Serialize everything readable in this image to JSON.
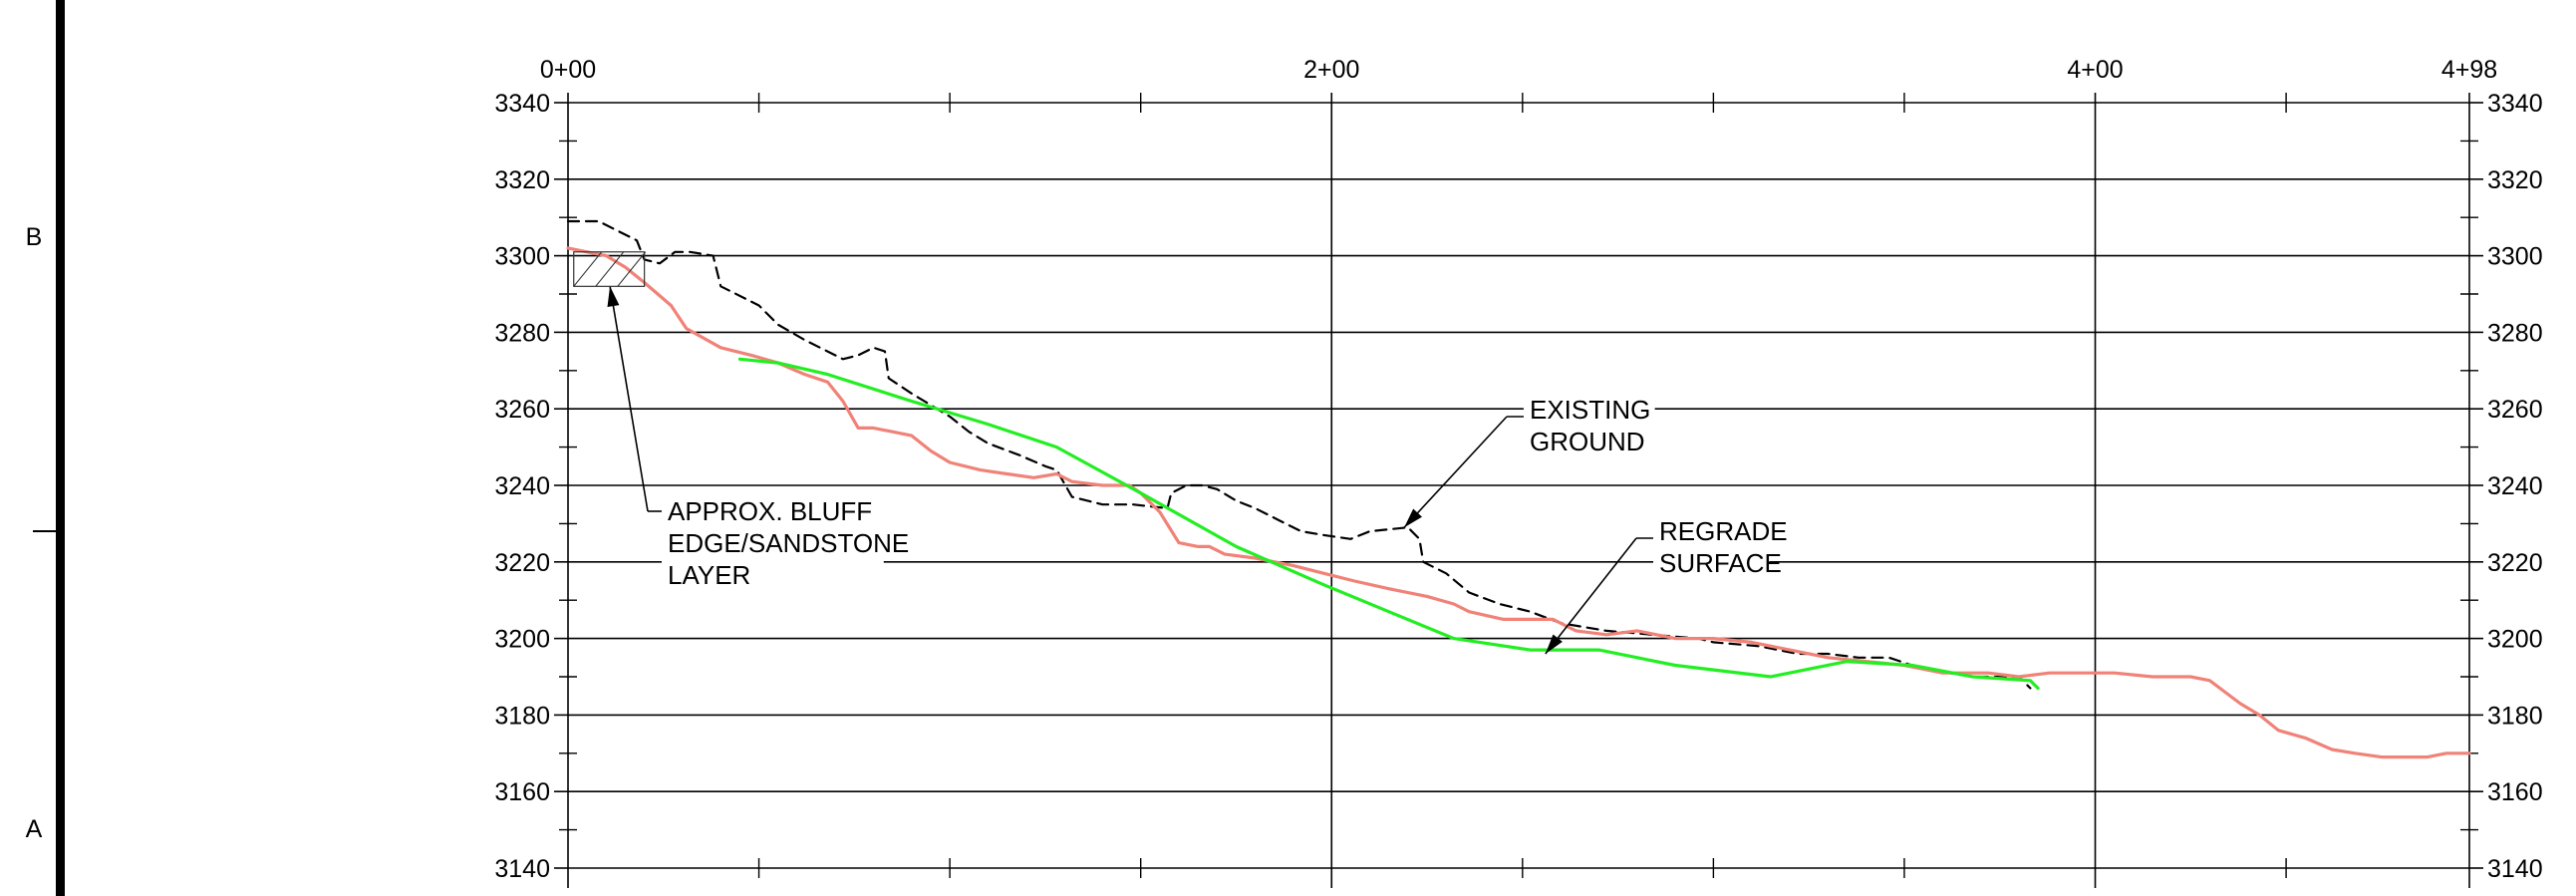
{
  "sheet": {
    "zone_labels": [
      "B",
      "A"
    ]
  },
  "chart_data": {
    "type": "line",
    "title": "",
    "xlabel": "",
    "ylabel": "",
    "xlim": [
      0,
      498
    ],
    "ylim": [
      3140,
      3340
    ],
    "x_ticks": [
      {
        "x": 0,
        "label": "0+00"
      },
      {
        "x": 200,
        "label": "2+00"
      },
      {
        "x": 400,
        "label": "4+00"
      },
      {
        "x": 498,
        "label": "4+98"
      }
    ],
    "y_ticks": [
      3340,
      3320,
      3300,
      3280,
      3260,
      3240,
      3220,
      3200,
      3180,
      3160,
      3140
    ],
    "grid": true,
    "series": [
      {
        "style": "dashed",
        "color": "#000000",
        "points": [
          [
            0,
            3309
          ],
          [
            8,
            3309
          ],
          [
            12,
            3307
          ],
          [
            18,
            3304
          ],
          [
            20,
            3299
          ],
          [
            24,
            3298
          ],
          [
            28,
            3301
          ],
          [
            32,
            3301
          ],
          [
            38,
            3300
          ],
          [
            40,
            3292
          ],
          [
            50,
            3287
          ],
          [
            55,
            3282
          ],
          [
            62,
            3278
          ],
          [
            68,
            3275
          ],
          [
            72,
            3273
          ],
          [
            76,
            3274
          ],
          [
            80,
            3276
          ],
          [
            83,
            3275
          ],
          [
            84,
            3268
          ],
          [
            90,
            3264
          ],
          [
            95,
            3261
          ],
          [
            100,
            3258
          ],
          [
            105,
            3254
          ],
          [
            110,
            3251
          ],
          [
            118,
            3248
          ],
          [
            125,
            3245
          ],
          [
            128,
            3244
          ],
          [
            132,
            3237
          ],
          [
            140,
            3235
          ],
          [
            148,
            3235
          ],
          [
            157,
            3234
          ],
          [
            158,
            3238
          ],
          [
            162,
            3240
          ],
          [
            166,
            3240
          ],
          [
            170,
            3239
          ],
          [
            175,
            3236
          ],
          [
            180,
            3234
          ],
          [
            186,
            3231
          ],
          [
            192,
            3228
          ],
          [
            198,
            3227
          ],
          [
            205,
            3226
          ],
          [
            210,
            3228
          ],
          [
            220,
            3229
          ],
          [
            223,
            3226
          ],
          [
            224,
            3220
          ],
          [
            230,
            3217
          ],
          [
            236,
            3212
          ],
          [
            244,
            3209
          ],
          [
            252,
            3207
          ],
          [
            260,
            3204
          ],
          [
            272,
            3202
          ],
          [
            284,
            3201
          ],
          [
            296,
            3200
          ],
          [
            300,
            3199
          ],
          [
            312,
            3198
          ],
          [
            322,
            3196
          ],
          [
            330,
            3196
          ],
          [
            338,
            3195
          ],
          [
            346,
            3195
          ],
          [
            355,
            3192
          ],
          [
            368,
            3190
          ],
          [
            380,
            3190
          ],
          [
            383,
            3187
          ]
        ]
      },
      {
        "style": "solid",
        "color": "#f08278",
        "points": [
          [
            0,
            3302
          ],
          [
            5,
            3301
          ],
          [
            10,
            3300
          ],
          [
            15,
            3297
          ],
          [
            20,
            3293
          ],
          [
            27,
            3287
          ],
          [
            31,
            3281
          ],
          [
            40,
            3276
          ],
          [
            48,
            3274
          ],
          [
            55,
            3272
          ],
          [
            62,
            3269
          ],
          [
            68,
            3267
          ],
          [
            72,
            3262
          ],
          [
            76,
            3255
          ],
          [
            80,
            3255
          ],
          [
            85,
            3254
          ],
          [
            90,
            3253
          ],
          [
            95,
            3249
          ],
          [
            100,
            3246
          ],
          [
            108,
            3244
          ],
          [
            115,
            3243
          ],
          [
            122,
            3242
          ],
          [
            128,
            3243
          ],
          [
            132,
            3241
          ],
          [
            140,
            3240
          ],
          [
            147,
            3240
          ],
          [
            150,
            3238
          ],
          [
            155,
            3233
          ],
          [
            160,
            3225
          ],
          [
            165,
            3224
          ],
          [
            168,
            3224
          ],
          [
            172,
            3222
          ],
          [
            180,
            3221
          ],
          [
            190,
            3219
          ],
          [
            198,
            3217
          ],
          [
            206,
            3215
          ],
          [
            215,
            3213
          ],
          [
            225,
            3211
          ],
          [
            232,
            3209
          ],
          [
            236,
            3207
          ],
          [
            245,
            3205
          ],
          [
            258,
            3205
          ],
          [
            264,
            3202
          ],
          [
            272,
            3201
          ],
          [
            280,
            3202
          ],
          [
            290,
            3200
          ],
          [
            300,
            3200
          ],
          [
            310,
            3199
          ],
          [
            320,
            3197
          ],
          [
            330,
            3195
          ],
          [
            340,
            3194
          ],
          [
            350,
            3193
          ],
          [
            360,
            3191
          ],
          [
            372,
            3191
          ],
          [
            380,
            3190
          ],
          [
            388,
            3191
          ],
          [
            395,
            3191
          ],
          [
            405,
            3191
          ],
          [
            415,
            3190
          ],
          [
            425,
            3190
          ],
          [
            430,
            3189
          ],
          [
            434,
            3186
          ],
          [
            438,
            3183
          ],
          [
            443,
            3180
          ],
          [
            448,
            3176
          ],
          [
            455,
            3174
          ],
          [
            462,
            3171
          ],
          [
            468,
            3170
          ],
          [
            475,
            3169
          ],
          [
            480,
            3169
          ],
          [
            487,
            3169
          ],
          [
            492,
            3170
          ],
          [
            498,
            3170
          ]
        ]
      },
      {
        "style": "solid",
        "color": "#22ee22",
        "points": [
          [
            45,
            3273
          ],
          [
            55,
            3272
          ],
          [
            68,
            3269
          ],
          [
            90,
            3262
          ],
          [
            110,
            3256
          ],
          [
            128,
            3250
          ],
          [
            150,
            3238
          ],
          [
            175,
            3224
          ],
          [
            198,
            3214
          ],
          [
            215,
            3207
          ],
          [
            232,
            3200
          ],
          [
            252,
            3197
          ],
          [
            270,
            3197
          ],
          [
            290,
            3193
          ],
          [
            315,
            3190
          ],
          [
            335,
            3194
          ],
          [
            352,
            3193
          ],
          [
            368,
            3190
          ],
          [
            383,
            3189
          ],
          [
            384,
            3188
          ],
          [
            385,
            3187
          ]
        ]
      }
    ],
    "annotations": [
      {
        "lines": [
          "APPROX. BLUFF",
          "EDGE/SANDSTONE",
          "LAYER"
        ],
        "target": [
          11,
          3292
        ]
      },
      {
        "lines": [
          "EXISTING",
          "GROUND"
        ],
        "target": [
          219,
          3229
        ]
      },
      {
        "lines": [
          "REGRADE",
          "SURFACE"
        ],
        "target": [
          256,
          3196
        ]
      }
    ]
  }
}
